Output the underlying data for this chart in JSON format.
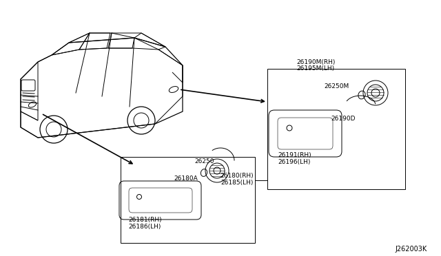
{
  "bg_color": "#ffffff",
  "diagram_id": "J262003K",
  "top_right_header": [
    "26190M(RH)",
    "26195M(LH)"
  ],
  "top_right_box": {
    "bulb_label": "26250M",
    "socket_label": "26190D",
    "lens_rh": "26191(RH)",
    "lens_lh": "26196(LH)"
  },
  "bottom_left_box": {
    "bulb_label": "26250",
    "socket_label": "26180A",
    "lens_rh": "26181(RH)",
    "lens_lh": "26186(LH)"
  },
  "side_label": [
    "26180(RH)",
    "26185(LH)"
  ]
}
